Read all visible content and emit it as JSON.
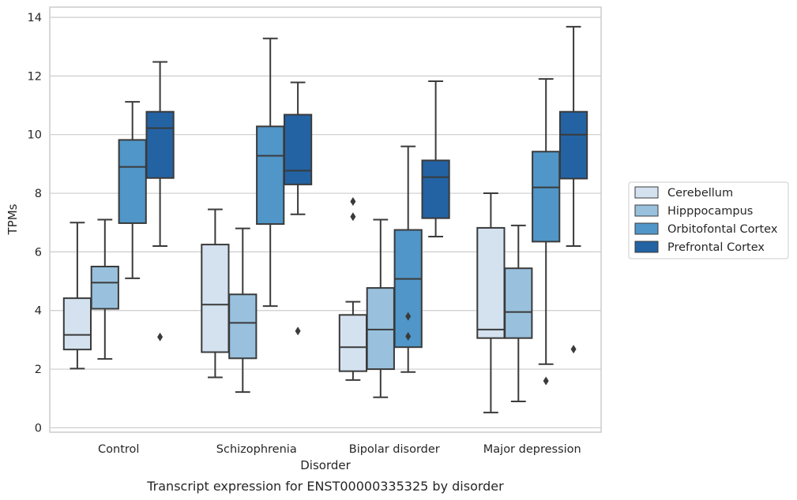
{
  "chart_data": {
    "type": "box",
    "xlabel": "Disorder",
    "ylabel": "TPMs",
    "caption": "Transcript expression for ENST00000335325 by disorder",
    "ylim": [
      -0.15,
      14.35
    ],
    "yticks": [
      0,
      2,
      4,
      6,
      8,
      10,
      12,
      14
    ],
    "grid": "horizontal",
    "legend_position": "right",
    "categories": [
      "Control",
      "Schizophrenia",
      "Bipolar disorder",
      "Major depression"
    ],
    "series": [
      {
        "name": "Cerebellum",
        "color": "#d4e2f0",
        "boxes": [
          {
            "whislo": 2.02,
            "q1": 2.67,
            "med": 3.17,
            "q3": 4.42,
            "whishi": 7.0,
            "fliers": []
          },
          {
            "whislo": 1.72,
            "q1": 2.58,
            "med": 4.2,
            "q3": 6.25,
            "whishi": 7.45,
            "fliers": []
          },
          {
            "whislo": 1.63,
            "q1": 1.93,
            "med": 2.75,
            "q3": 3.85,
            "whishi": 4.3,
            "fliers": [
              7.2,
              7.72
            ]
          },
          {
            "whislo": 0.52,
            "q1": 3.06,
            "med": 3.35,
            "q3": 6.82,
            "whishi": 8.0,
            "fliers": []
          }
        ]
      },
      {
        "name": "Hipppocampus",
        "color": "#99c1de",
        "boxes": [
          {
            "whislo": 2.35,
            "q1": 4.06,
            "med": 4.95,
            "q3": 5.5,
            "whishi": 7.1,
            "fliers": []
          },
          {
            "whislo": 1.22,
            "q1": 2.37,
            "med": 3.58,
            "q3": 4.55,
            "whishi": 6.8,
            "fliers": []
          },
          {
            "whislo": 1.04,
            "q1": 2.0,
            "med": 3.35,
            "q3": 4.77,
            "whishi": 7.1,
            "fliers": []
          },
          {
            "whislo": 0.9,
            "q1": 3.06,
            "med": 3.95,
            "q3": 5.44,
            "whishi": 6.9,
            "fliers": []
          }
        ]
      },
      {
        "name": "Orbitofontal Cortex",
        "color": "#5096c8",
        "boxes": [
          {
            "whislo": 5.1,
            "q1": 6.98,
            "med": 8.9,
            "q3": 9.82,
            "whishi": 11.12,
            "fliers": []
          },
          {
            "whislo": 4.15,
            "q1": 6.95,
            "med": 9.28,
            "q3": 10.28,
            "whishi": 13.28,
            "fliers": []
          },
          {
            "whislo": 1.9,
            "q1": 2.75,
            "med": 5.08,
            "q3": 6.75,
            "whishi": 9.6,
            "fliers": [
              3.12,
              3.8
            ]
          },
          {
            "whislo": 2.17,
            "q1": 6.35,
            "med": 8.2,
            "q3": 9.42,
            "whishi": 11.9,
            "fliers": [
              1.6
            ]
          }
        ]
      },
      {
        "name": "Prefrontal Cortex",
        "color": "#2363a4",
        "boxes": [
          {
            "whislo": 6.2,
            "q1": 8.52,
            "med": 10.22,
            "q3": 10.78,
            "whishi": 12.48,
            "fliers": [
              3.1
            ]
          },
          {
            "whislo": 7.28,
            "q1": 8.3,
            "med": 8.77,
            "q3": 10.68,
            "whishi": 11.78,
            "fliers": [
              3.3
            ]
          },
          {
            "whislo": 6.52,
            "q1": 7.15,
            "med": 8.55,
            "q3": 9.12,
            "whishi": 11.82,
            "fliers": []
          },
          {
            "whislo": 6.2,
            "q1": 8.5,
            "med": 10.0,
            "q3": 10.78,
            "whishi": 13.68,
            "fliers": [
              2.68
            ]
          }
        ]
      }
    ]
  }
}
